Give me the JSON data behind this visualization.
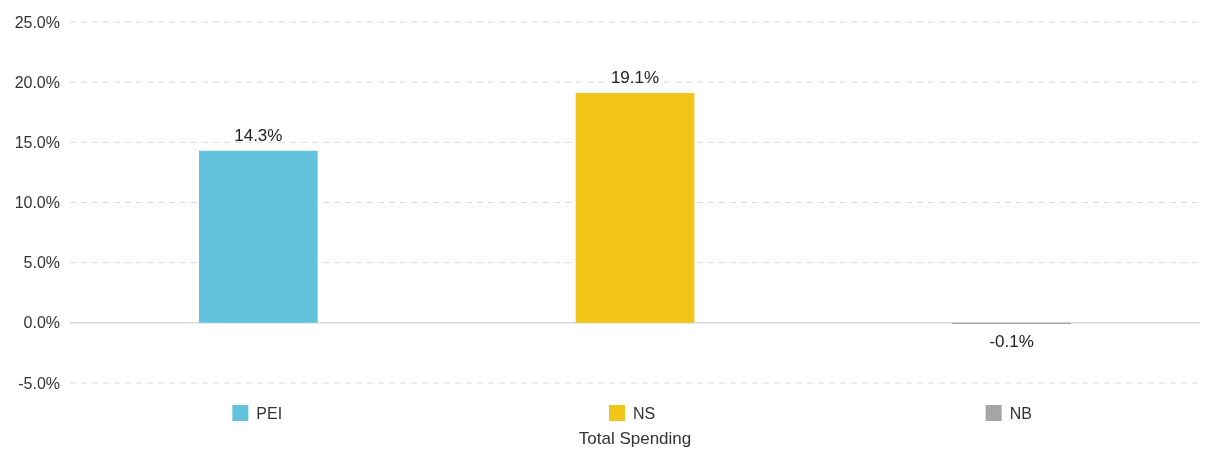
{
  "chart_data": {
    "type": "bar",
    "categories": [
      null
    ],
    "xlabel": "Total Spending",
    "series": [
      {
        "name": "PEI",
        "color": "#62c3dc",
        "values": [
          14.3
        ],
        "value_labels": [
          "14.3%"
        ]
      },
      {
        "name": "NS",
        "color": "#f2c618",
        "values": [
          19.1
        ],
        "value_labels": [
          "19.1%"
        ]
      },
      {
        "name": "NB",
        "color": "#a5a5a5",
        "values": [
          -0.1
        ],
        "value_labels": [
          "-0.1%"
        ]
      }
    ],
    "ylim": [
      -5,
      25
    ],
    "yticks": [
      {
        "value": -5,
        "label": "-5.0%"
      },
      {
        "value": 0,
        "label": "0.0%"
      },
      {
        "value": 5,
        "label": "5.0%"
      },
      {
        "value": 10,
        "label": "10.0%"
      },
      {
        "value": 15,
        "label": "15.0%"
      },
      {
        "value": 20,
        "label": "20.0%"
      },
      {
        "value": 25,
        "label": "25.0%"
      }
    ],
    "grid": "y",
    "legend": "bottom"
  }
}
